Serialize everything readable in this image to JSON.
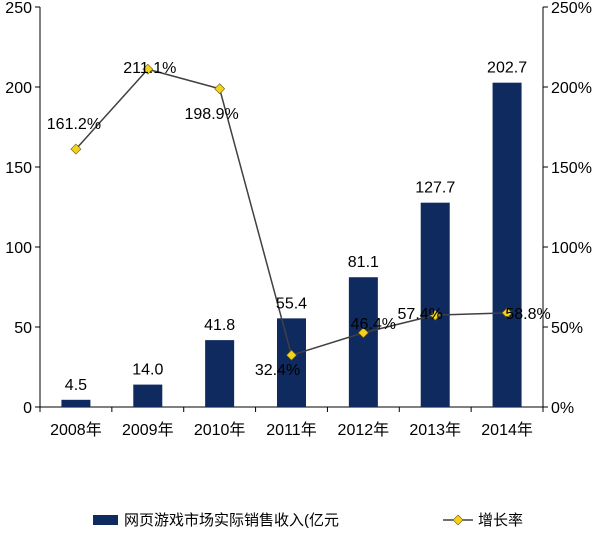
{
  "chart_data": {
    "type": "bar",
    "categories": [
      "2008年",
      "2009年",
      "2010年",
      "2011年",
      "2012年",
      "2013年",
      "2014年"
    ],
    "series": [
      {
        "name": "网页游戏市场实际销售收入(亿元",
        "type": "bar",
        "axis": "left",
        "values": [
          4.5,
          14.0,
          41.8,
          55.4,
          81.1,
          127.7,
          202.7
        ],
        "labels": [
          "4.5",
          "14.0",
          "41.8",
          "55.4",
          "81.1",
          "127.7",
          "202.7"
        ],
        "color": "#0f2a5e"
      },
      {
        "name": "增长率",
        "type": "line",
        "axis": "right",
        "values": [
          161.2,
          211.1,
          198.9,
          32.4,
          46.4,
          57.4,
          58.8
        ],
        "labels": [
          "161.2%",
          "211.1%",
          "198.9%",
          "32.4%",
          "46.4%",
          "57.4%",
          "58.8%"
        ],
        "line_color": "#404040",
        "marker_color": "#f2d21b"
      }
    ],
    "y_left": {
      "min": 0,
      "max": 250,
      "ticks": [
        "0",
        "50",
        "100",
        "150",
        "200",
        "250"
      ]
    },
    "y_right": {
      "min": 0,
      "max": 250,
      "ticks": [
        "0%",
        "50%",
        "100%",
        "150%",
        "200%",
        "250%"
      ]
    },
    "grid": false,
    "legend_position": "bottom"
  }
}
